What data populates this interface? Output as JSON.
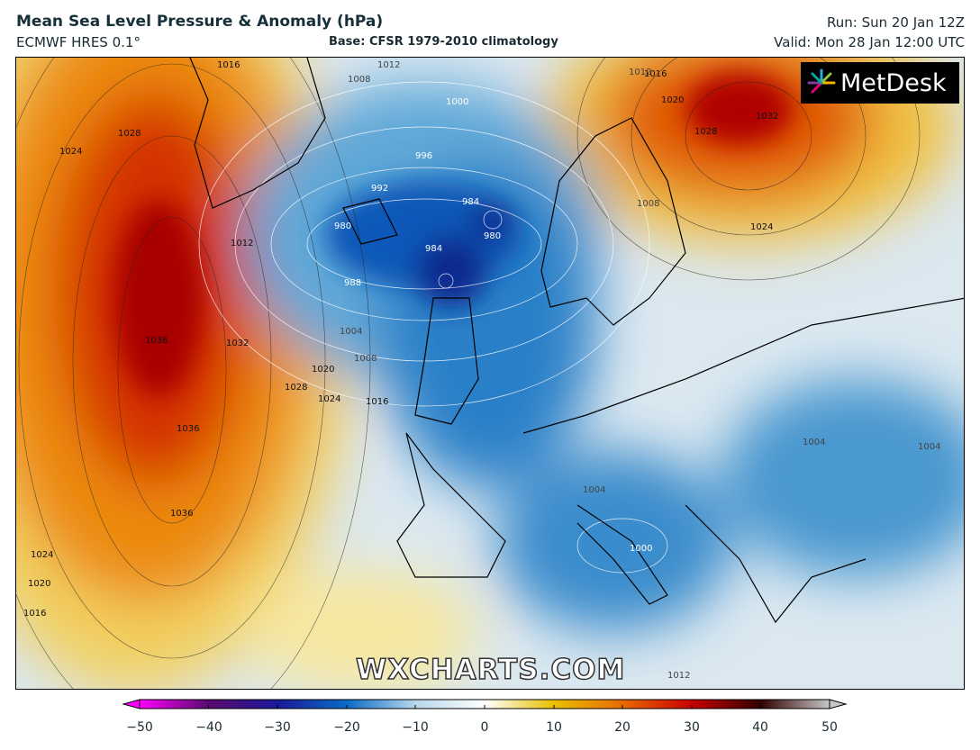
{
  "header": {
    "title": "Mean Sea Level Pressure & Anomaly (hPa)",
    "model": "ECMWF HRES 0.1°",
    "base": "Base: CFSR 1979-2010 climatology",
    "run": "Run: Sun 20 Jan 12Z",
    "valid": "Valid: Mon 28 Jan 12:00 UTC"
  },
  "logo": {
    "text": "MetDesk"
  },
  "watermark": "WXCHARTS.COM",
  "contour_labels": [
    "1016",
    "1028",
    "1024",
    "1012",
    "1036",
    "1032",
    "1028",
    "1020",
    "1024",
    "1016",
    "1036",
    "1036",
    "1024",
    "1020",
    "1016",
    "1008",
    "1012",
    "1000",
    "996",
    "992",
    "984",
    "980",
    "980",
    "984",
    "988",
    "1004",
    "1008",
    "1012",
    "1016",
    "1020",
    "1028",
    "1032",
    "1008",
    "1024",
    "1004",
    "1000",
    "1012",
    "1004",
    "1004"
  ],
  "colorbar": {
    "ticks": [
      "−50",
      "−40",
      "−30",
      "−20",
      "−10",
      "0",
      "10",
      "20",
      "30",
      "40",
      "50"
    ],
    "colors": [
      "#ff00ff",
      "#5a0a6e",
      "#1a1a9a",
      "#0a6ac8",
      "#b8d8ea",
      "#ffffff",
      "#e8c000",
      "#e86a00",
      "#c80000",
      "#300000",
      "#c8c8c8"
    ]
  }
}
